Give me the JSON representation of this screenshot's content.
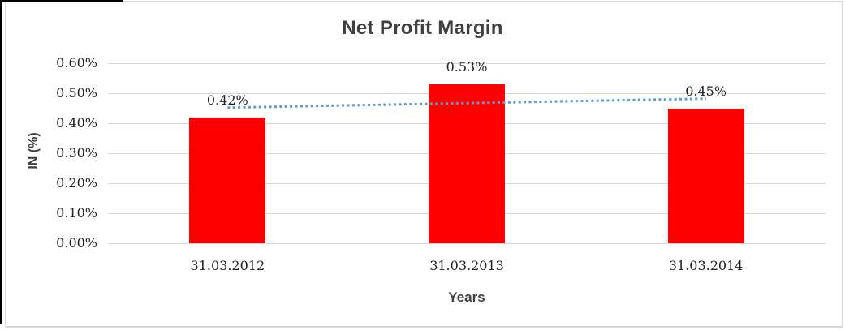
{
  "chart_data": {
    "type": "bar",
    "title": "Net Profit Margin",
    "xlabel": "Years",
    "ylabel": "IN (%)",
    "categories": [
      "31.03.2012",
      "31.03.2013",
      "31.03.2014"
    ],
    "values": [
      0.42,
      0.53,
      0.45
    ],
    "data_labels": [
      "0.42%",
      "0.53%",
      "0.45%"
    ],
    "y_ticks": [
      {
        "value": 0.0,
        "label": "0.00%"
      },
      {
        "value": 0.1,
        "label": "0.10%"
      },
      {
        "value": 0.2,
        "label": "0.20%"
      },
      {
        "value": 0.3,
        "label": "0.30%"
      },
      {
        "value": 0.4,
        "label": "0.40%"
      },
      {
        "value": 0.5,
        "label": "0.50%"
      },
      {
        "value": 0.6,
        "label": "0.60%"
      }
    ],
    "ylim": [
      0,
      0.6
    ],
    "grid": true,
    "legend": "none",
    "bar_color": "#FF0000",
    "trendline": {
      "type": "linear",
      "style": "dotted",
      "color": "#5B9BD5",
      "start_value": 0.452,
      "end_value": 0.482
    }
  },
  "colors": {
    "title": "#3F3F3F",
    "axis_title": "#3F3F3F",
    "tick_label": "#1F1F1F",
    "gridline": "#D9D9D9",
    "chart_border": "#D9D9D9",
    "page_frame": "#000000",
    "bar": "#FF0000",
    "trendline": "#5B9BD5"
  }
}
